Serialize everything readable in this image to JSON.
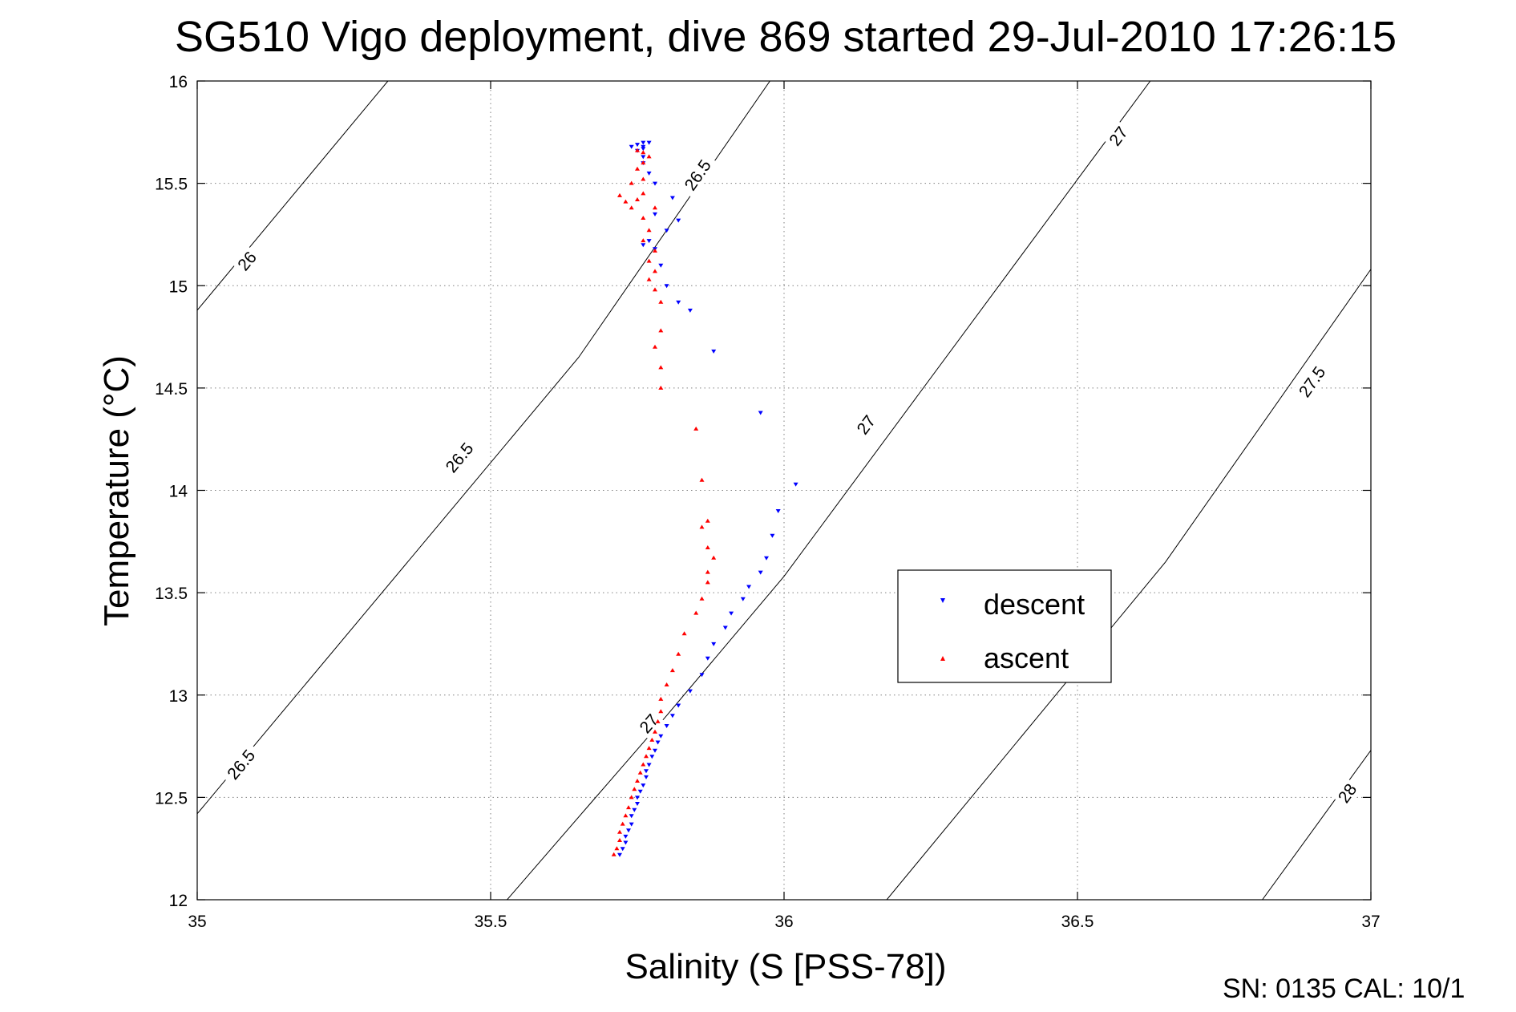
{
  "chart_data": {
    "type": "scatter",
    "title": "SG510 Vigo deployment, dive 869 started 29-Jul-2010 17:26:15",
    "xlabel": "Salinity (S [PSS-78])",
    "ylabel": "Temperature (°C)",
    "xlim": [
      35,
      37
    ],
    "ylim": [
      12,
      16
    ],
    "x_ticks": [
      "35",
      "35.5",
      "36",
      "36.5",
      "37"
    ],
    "y_ticks": [
      "12",
      "12.5",
      "13",
      "13.5",
      "14",
      "14.5",
      "15",
      "15.5",
      "16"
    ],
    "grid": true,
    "legend_position": "right",
    "footer": "SN: 0135  CAL: 10/1",
    "density_contours": [
      {
        "level": "26",
        "segments": [
          [
            [
              35.0,
              14.88
            ],
            [
              35.325,
              16.0
            ]
          ]
        ],
        "labels": [
          {
            "text": "26",
            "x": 35.085,
            "y": 15.12
          }
        ]
      },
      {
        "level": "26.5",
        "segments": [
          [
            [
              35.0,
              12.42
            ],
            [
              35.65,
              14.65
            ],
            [
              35.976,
              16.0
            ]
          ]
        ],
        "labels": [
          {
            "text": "26.5",
            "x": 35.075,
            "y": 12.66
          },
          {
            "text": "26.5",
            "x": 35.447,
            "y": 14.16
          },
          {
            "text": "26.5",
            "x": 35.853,
            "y": 15.54
          }
        ]
      },
      {
        "level": "27",
        "segments": [
          [
            [
              35.528,
              12.0
            ],
            [
              35.67,
              12.47
            ],
            [
              35.8,
              12.9
            ],
            [
              36.0,
              13.58
            ],
            [
              36.624,
              16.0
            ]
          ]
        ],
        "labels": [
          {
            "text": "27",
            "x": 35.77,
            "y": 12.86
          },
          {
            "text": "27",
            "x": 36.14,
            "y": 14.32
          },
          {
            "text": "27",
            "x": 36.57,
            "y": 15.73
          }
        ]
      },
      {
        "level": "27.5",
        "segments": [
          [
            [
              36.175,
              12.0
            ],
            [
              36.65,
              13.65
            ],
            [
              37.0,
              15.08
            ]
          ]
        ],
        "labels": [
          {
            "text": "27.5",
            "x": 36.9,
            "y": 14.53
          }
        ]
      },
      {
        "level": "28",
        "segments": [
          [
            [
              36.815,
              12.0
            ],
            [
              37.0,
              12.73
            ]
          ]
        ],
        "labels": [
          {
            "text": "28",
            "x": 36.96,
            "y": 12.52
          }
        ]
      }
    ],
    "series": [
      {
        "name": "descent",
        "marker": "triangle-down",
        "color": "#0000ff",
        "x": [
          35.72,
          35.725,
          35.73,
          35.73,
          35.735,
          35.74,
          35.74,
          35.745,
          35.75,
          35.75,
          35.755,
          35.76,
          35.765,
          35.765,
          35.77,
          35.775,
          35.78,
          35.785,
          35.79,
          35.8,
          35.81,
          35.82,
          35.84,
          35.86,
          35.87,
          35.88,
          35.9,
          35.91,
          35.93,
          35.94,
          35.96,
          35.97,
          35.98,
          35.99,
          36.02,
          35.96,
          35.88,
          35.84,
          35.82,
          35.8,
          35.79,
          35.78,
          35.77,
          35.76,
          35.8,
          35.78,
          35.82,
          35.81,
          35.78,
          35.77,
          35.76,
          35.76,
          35.75,
          35.76,
          35.76,
          35.77,
          35.74,
          35.75,
          35.76
        ],
        "y": [
          12.22,
          12.25,
          12.28,
          12.31,
          12.34,
          12.37,
          12.41,
          12.44,
          12.47,
          12.5,
          12.53,
          12.56,
          12.6,
          12.63,
          12.66,
          12.7,
          12.73,
          12.77,
          12.8,
          12.85,
          12.9,
          12.95,
          13.02,
          13.1,
          13.18,
          13.25,
          13.33,
          13.4,
          13.47,
          13.53,
          13.6,
          13.67,
          13.78,
          13.9,
          14.03,
          14.38,
          14.68,
          14.88,
          14.92,
          15.0,
          15.1,
          15.18,
          15.22,
          15.2,
          15.27,
          15.35,
          15.32,
          15.43,
          15.5,
          15.55,
          15.6,
          15.63,
          15.66,
          15.68,
          15.7,
          15.7,
          15.68,
          15.69,
          15.67
        ]
      },
      {
        "name": "ascent",
        "marker": "triangle-up",
        "color": "#ff0000",
        "x": [
          35.71,
          35.715,
          35.72,
          35.72,
          35.725,
          35.73,
          35.735,
          35.74,
          35.745,
          35.75,
          35.755,
          35.76,
          35.765,
          35.77,
          35.775,
          35.78,
          35.785,
          35.79,
          35.79,
          35.8,
          35.81,
          35.82,
          35.83,
          35.85,
          35.86,
          35.87,
          35.87,
          35.88,
          35.87,
          35.86,
          35.87,
          35.86,
          35.85,
          35.79,
          35.79,
          35.78,
          35.79,
          35.79,
          35.78,
          35.77,
          35.78,
          35.77,
          35.78,
          35.76,
          35.77,
          35.76,
          35.78,
          35.76,
          35.75,
          35.74,
          35.73,
          35.72,
          35.74,
          35.76,
          35.75,
          35.76,
          35.77,
          35.76,
          35.75
        ],
        "y": [
          12.22,
          12.25,
          12.29,
          12.33,
          12.37,
          12.41,
          12.45,
          12.5,
          12.54,
          12.58,
          12.62,
          12.66,
          12.7,
          12.74,
          12.78,
          12.82,
          12.87,
          12.92,
          12.98,
          13.05,
          13.12,
          13.2,
          13.3,
          13.4,
          13.47,
          13.55,
          13.6,
          13.67,
          13.72,
          13.82,
          13.85,
          14.05,
          14.3,
          14.5,
          14.6,
          14.7,
          14.78,
          14.92,
          14.98,
          15.03,
          15.07,
          15.12,
          15.17,
          15.22,
          15.27,
          15.33,
          15.38,
          15.45,
          15.42,
          15.38,
          15.41,
          15.44,
          15.5,
          15.52,
          15.57,
          15.6,
          15.63,
          15.65,
          15.66
        ]
      }
    ]
  }
}
